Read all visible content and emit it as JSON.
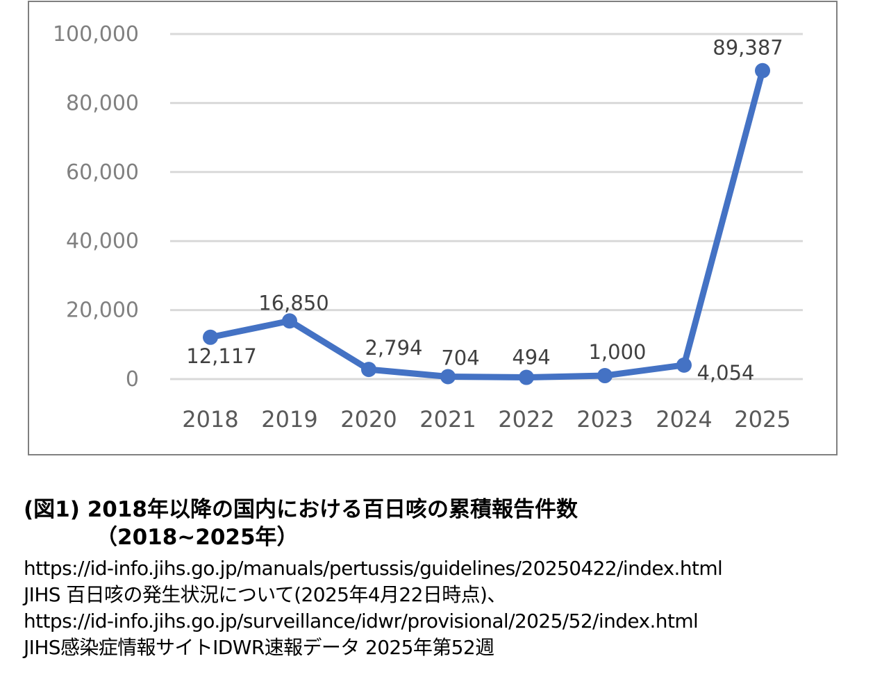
{
  "chart_data": {
    "type": "line",
    "title": "",
    "xlabel": "",
    "ylabel": "",
    "categories": [
      "2018",
      "2019",
      "2020",
      "2021",
      "2022",
      "2023",
      "2024",
      "2025"
    ],
    "values": [
      12117,
      16850,
      2794,
      704,
      494,
      1000,
      4054,
      89387
    ],
    "data_labels": [
      "12,117",
      "16,850",
      "2,794",
      "704",
      "494",
      "1,000",
      "4,054",
      "89,387"
    ],
    "ylim": [
      0,
      100000
    ],
    "yticks": [
      0,
      20000,
      40000,
      60000,
      80000,
      100000
    ],
    "ytick_labels": [
      "0",
      "20,000",
      "40,000",
      "60,000",
      "80,000",
      "100,000"
    ],
    "grid": true,
    "legend": null,
    "series_color": "#4472C4"
  },
  "caption": {
    "line1": "(図1) 2018年以降の国内における百日咳の累積報告件数",
    "line2": "（2018~2025年）"
  },
  "sources": [
    "https://id-info.jihs.go.jp/manuals/pertussis/guidelines/20250422/index.html",
    "JIHS 百日咳の発生状況について(2025年4月22日時点)、",
    "https://id-info.jihs.go.jp/surveillance/idwr/provisional/2025/52/index.html",
    "JIHS感染症情報サイトIDWR速報データ 2025年第52週"
  ]
}
